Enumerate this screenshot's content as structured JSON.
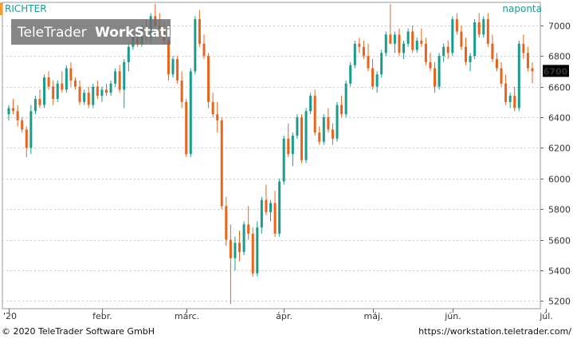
{
  "header": {
    "symbol": "RICHTER",
    "period": "naponta"
  },
  "watermark": {
    "brand": "TeleTrader",
    "product": "WorkStation"
  },
  "footer": {
    "copyright": "© 2020 TeleTrader Software GmbH",
    "url": "https://workstation.teletrader.com/"
  },
  "last_price_label": "6700",
  "colors": {
    "up": "#1a9c8c",
    "down": "#e8641c",
    "grid": "#c8c8c8",
    "accent": "#f0a030"
  },
  "chart_data": {
    "type": "candlestick",
    "title": "RICHTER",
    "period": "naponta",
    "ylim": [
      5150,
      7150
    ],
    "yticks": [
      5200,
      5400,
      5600,
      5800,
      6000,
      6200,
      6400,
      6600,
      6800,
      7000
    ],
    "xticks": [
      {
        "label": "'20",
        "index": 0
      },
      {
        "label": "febr.",
        "index": 21
      },
      {
        "label": "márc.",
        "index": 40
      },
      {
        "label": "ápr.",
        "index": 62
      },
      {
        "label": "máj.",
        "index": 82
      },
      {
        "label": "jún.",
        "index": 100
      },
      {
        "label": "júl.",
        "index": 121
      }
    ],
    "last_value": 6700,
    "candles": [
      [
        6420,
        6480,
        6380,
        6460
      ],
      [
        6460,
        6520,
        6420,
        6440
      ],
      [
        6440,
        6480,
        6340,
        6380
      ],
      [
        6380,
        6400,
        6300,
        6320
      ],
      [
        6320,
        6340,
        6140,
        6200
      ],
      [
        6200,
        6480,
        6160,
        6440
      ],
      [
        6440,
        6540,
        6420,
        6520
      ],
      [
        6520,
        6580,
        6460,
        6480
      ],
      [
        6480,
        6680,
        6460,
        6660
      ],
      [
        6660,
        6700,
        6580,
        6600
      ],
      [
        6600,
        6640,
        6480,
        6520
      ],
      [
        6520,
        6640,
        6500,
        6620
      ],
      [
        6620,
        6700,
        6560,
        6580
      ],
      [
        6580,
        6740,
        6560,
        6720
      ],
      [
        6720,
        6760,
        6600,
        6640
      ],
      [
        6640,
        6660,
        6580,
        6600
      ],
      [
        6600,
        6640,
        6480,
        6500
      ],
      [
        6500,
        6580,
        6480,
        6560
      ],
      [
        6560,
        6600,
        6460,
        6480
      ],
      [
        6480,
        6620,
        6460,
        6600
      ],
      [
        6600,
        6640,
        6520,
        6540
      ],
      [
        6540,
        6600,
        6500,
        6580
      ],
      [
        6580,
        6620,
        6540,
        6560
      ],
      [
        6560,
        6640,
        6540,
        6620
      ],
      [
        6620,
        6720,
        6600,
        6700
      ],
      [
        6700,
        6740,
        6560,
        6580
      ],
      [
        6580,
        6780,
        6460,
        6760
      ],
      [
        6760,
        6880,
        6700,
        6860
      ],
      [
        6860,
        6960,
        6840,
        6940
      ],
      [
        6940,
        6980,
        6860,
        6880
      ],
      [
        6880,
        7000,
        6860,
        6980
      ],
      [
        6980,
        7040,
        6900,
        6920
      ],
      [
        6920,
        7080,
        6880,
        7060
      ],
      [
        7060,
        7140,
        6980,
        7000
      ],
      [
        7000,
        7080,
        6940,
        6960
      ],
      [
        6960,
        7020,
        6880,
        6900
      ],
      [
        6900,
        6960,
        6640,
        6680
      ],
      [
        6680,
        6800,
        6660,
        6780
      ],
      [
        6780,
        6800,
        6620,
        6640
      ],
      [
        6640,
        6700,
        6460,
        6500
      ],
      [
        6500,
        6520,
        6140,
        6160
      ],
      [
        6160,
        6720,
        6140,
        6700
      ],
      [
        6700,
        7060,
        6680,
        7040
      ],
      [
        7040,
        7100,
        6860,
        6880
      ],
      [
        6880,
        6940,
        6780,
        6800
      ],
      [
        6800,
        6820,
        6460,
        6500
      ],
      [
        6500,
        6560,
        6400,
        6420
      ],
      [
        6420,
        6500,
        6300,
        6380
      ],
      [
        6380,
        6400,
        5800,
        5820
      ],
      [
        5820,
        5880,
        5560,
        5600
      ],
      [
        5600,
        5700,
        5180,
        5480
      ],
      [
        5480,
        5620,
        5400,
        5580
      ],
      [
        5580,
        5660,
        5460,
        5520
      ],
      [
        5520,
        5720,
        5500,
        5700
      ],
      [
        5700,
        5820,
        5600,
        5640
      ],
      [
        5640,
        5680,
        5360,
        5380
      ],
      [
        5380,
        5720,
        5360,
        5680
      ],
      [
        5680,
        5880,
        5640,
        5860
      ],
      [
        5860,
        5960,
        5760,
        5780
      ],
      [
        5780,
        5860,
        5720,
        5840
      ],
      [
        5840,
        5920,
        5620,
        5640
      ],
      [
        5640,
        6000,
        5620,
        5980
      ],
      [
        5980,
        6280,
        5960,
        6260
      ],
      [
        6260,
        6360,
        6140,
        6160
      ],
      [
        6160,
        6300,
        6080,
        6280
      ],
      [
        6280,
        6420,
        6260,
        6400
      ],
      [
        6400,
        6420,
        6100,
        6120
      ],
      [
        6120,
        6460,
        6100,
        6440
      ],
      [
        6440,
        6560,
        6420,
        6540
      ],
      [
        6540,
        6580,
        6280,
        6300
      ],
      [
        6300,
        6340,
        6220,
        6240
      ],
      [
        6240,
        6420,
        6220,
        6400
      ],
      [
        6400,
        6460,
        6300,
        6320
      ],
      [
        6320,
        6360,
        6220,
        6260
      ],
      [
        6260,
        6500,
        6240,
        6480
      ],
      [
        6480,
        6540,
        6400,
        6420
      ],
      [
        6420,
        6640,
        6400,
        6620
      ],
      [
        6620,
        6760,
        6600,
        6740
      ],
      [
        6740,
        6900,
        6720,
        6880
      ],
      [
        6880,
        6920,
        6820,
        6860
      ],
      [
        6860,
        6900,
        6780,
        6800
      ],
      [
        6800,
        6880,
        6700,
        6720
      ],
      [
        6720,
        6780,
        6580,
        6600
      ],
      [
        6600,
        6700,
        6560,
        6680
      ],
      [
        6680,
        6840,
        6660,
        6820
      ],
      [
        6820,
        6960,
        6800,
        6940
      ],
      [
        6940,
        7140,
        6900,
        6880
      ],
      [
        6880,
        6960,
        6820,
        6940
      ],
      [
        6940,
        6980,
        6800,
        6820
      ],
      [
        6820,
        6900,
        6780,
        6880
      ],
      [
        6880,
        6980,
        6860,
        6960
      ],
      [
        6960,
        7000,
        6820,
        6840
      ],
      [
        6840,
        6920,
        6820,
        6900
      ],
      [
        6900,
        6980,
        6860,
        6880
      ],
      [
        6880,
        6920,
        6740,
        6760
      ],
      [
        6760,
        6820,
        6700,
        6720
      ],
      [
        6720,
        6760,
        6560,
        6600
      ],
      [
        6600,
        6820,
        6580,
        6800
      ],
      [
        6800,
        6880,
        6760,
        6860
      ],
      [
        6860,
        6900,
        6780,
        6820
      ],
      [
        6820,
        7060,
        6800,
        7040
      ],
      [
        7040,
        7080,
        6940,
        6960
      ],
      [
        6960,
        7000,
        6840,
        6860
      ],
      [
        6860,
        6920,
        6740,
        6760
      ],
      [
        6760,
        6820,
        6700,
        6800
      ],
      [
        6800,
        7040,
        6780,
        7020
      ],
      [
        7020,
        7080,
        6920,
        6940
      ],
      [
        6940,
        7060,
        6920,
        7040
      ],
      [
        7040,
        7080,
        6860,
        6880
      ],
      [
        6880,
        6940,
        6760,
        6780
      ],
      [
        6780,
        6820,
        6700,
        6720
      ],
      [
        6720,
        6760,
        6600,
        6620
      ],
      [
        6620,
        6680,
        6480,
        6500
      ],
      [
        6500,
        6560,
        6460,
        6540
      ],
      [
        6540,
        6600,
        6440,
        6460
      ],
      [
        6460,
        6900,
        6440,
        6880
      ],
      [
        6880,
        6940,
        6780,
        6820
      ],
      [
        6820,
        6860,
        6700,
        6720
      ],
      [
        6720,
        6760,
        6620,
        6700
      ]
    ]
  }
}
